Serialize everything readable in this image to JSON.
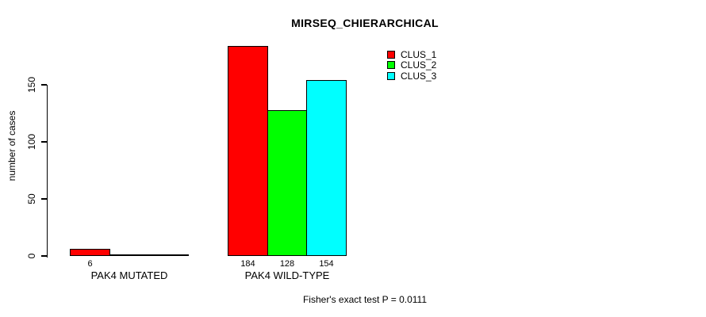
{
  "page": {
    "background": "#ffffff"
  },
  "chart_data": {
    "type": "bar",
    "title": "MIRSEQ_CHIERARCHICAL",
    "ylabel": "number of cases",
    "xlabel": "",
    "yticks": [
      0,
      50,
      100,
      150
    ],
    "axis_range": [
      0,
      150
    ],
    "grid": false,
    "legend_position": "top-right",
    "categories": [
      "PAK4 MUTATED",
      "PAK4 WILD-TYPE"
    ],
    "series": [
      {
        "name": "CLUS_1",
        "color": "#ff0000",
        "values": [
          6,
          184
        ]
      },
      {
        "name": "CLUS_2",
        "color": "#00ff00",
        "values": [
          0,
          128
        ]
      },
      {
        "name": "CLUS_3",
        "color": "#00ffff",
        "values": [
          0,
          154
        ]
      }
    ],
    "bar_value_labels": [
      [
        "6",
        null,
        null
      ],
      [
        "184",
        "128",
        "154"
      ]
    ],
    "footnote": "Fisher's exact test P = 0.0111"
  }
}
